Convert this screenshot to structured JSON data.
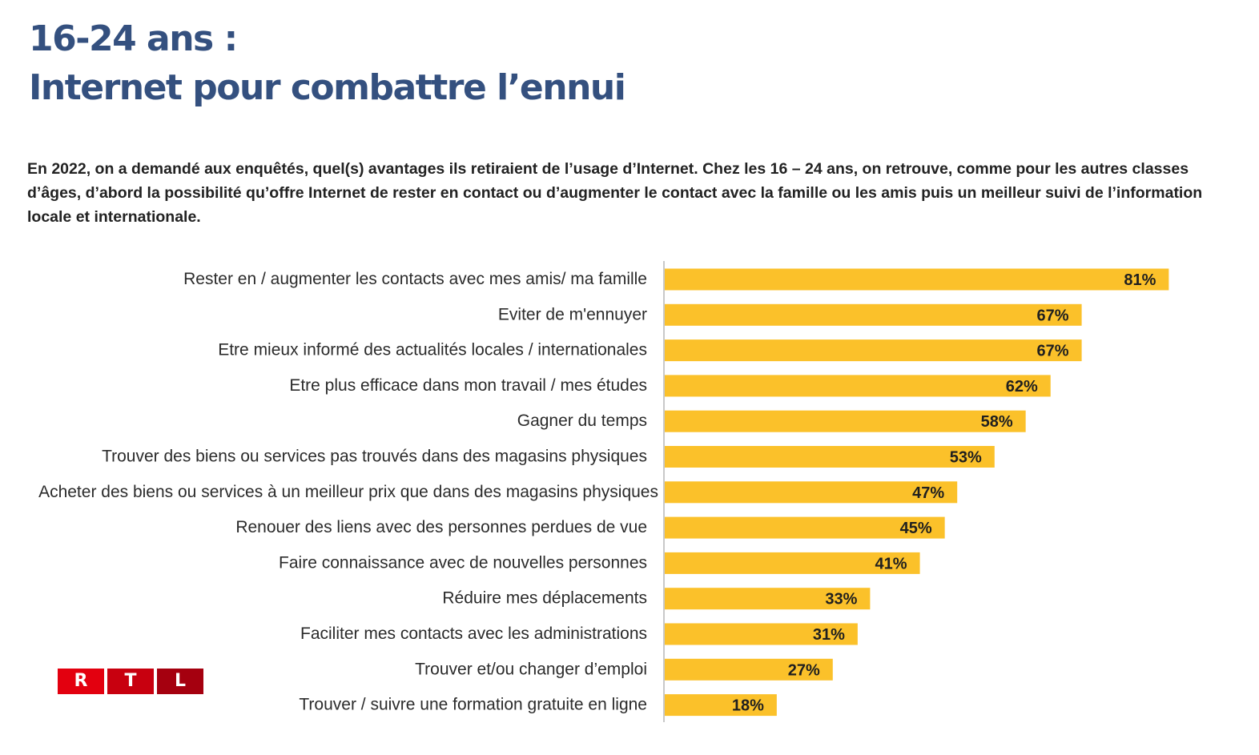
{
  "header": {
    "title_line1": "16-24 ans :",
    "title_line2": "Internet pour combattre l’ennui"
  },
  "intro_text": "En 2022, on a demandé aux enquêtés, quel(s) avantages ils retiraient de l’usage d’Internet. Chez les 16 – 24 ans, on retrouve, comme pour les autres classes d’âges, d’abord la possibilité qu’offre Internet de rester en contact ou d’augmenter le contact avec la famille ou les amis puis un meilleur suivi de l’information locale et internationale.",
  "logo": {
    "letters": [
      "R",
      "T",
      "L"
    ],
    "colors": [
      "#e3000f",
      "#c8000f",
      "#a5000f"
    ]
  },
  "colors": {
    "title": "#34507f",
    "bar": "#fbc12a",
    "axis": "#c8c8c8"
  },
  "chart_data": {
    "type": "bar",
    "orientation": "horizontal",
    "title": "16-24 ans : Internet pour combattre l’ennui",
    "xlabel": "",
    "ylabel": "",
    "xlim": [
      0,
      100
    ],
    "grid": false,
    "legend": "none",
    "unit": "%",
    "categories": [
      "Rester en / augmenter les contacts avec mes amis/ ma famille",
      "Eviter de m'ennuyer",
      "Etre mieux informé des actualités locales / internationales",
      "Etre plus efficace dans mon travail / mes études",
      "Gagner du temps",
      "Trouver des biens ou services pas trouvés dans des magasins physiques",
      "Acheter des biens ou services à un meilleur prix que dans des magasins physiques",
      "Renouer des liens avec des personnes perdues de vue",
      "Faire connaissance avec de nouvelles personnes",
      "Réduire mes déplacements",
      "Faciliter mes contacts avec les administrations",
      "Trouver et/ou changer d’emploi",
      "Trouver / suivre une formation gratuite en ligne"
    ],
    "values": [
      81,
      67,
      67,
      62,
      58,
      53,
      47,
      45,
      41,
      33,
      31,
      27,
      18
    ],
    "value_labels": [
      "81%",
      "67%",
      "67%",
      "62%",
      "58%",
      "53%",
      "47%",
      "45%",
      "41%",
      "33%",
      "31%",
      "27%",
      "18%"
    ]
  }
}
